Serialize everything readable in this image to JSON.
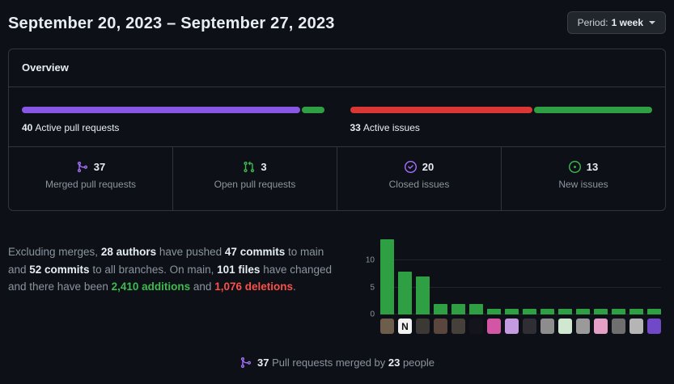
{
  "header": {
    "date_range": "September 20, 2023 – September 27, 2023",
    "period_label": "Period:",
    "period_value": "1 week"
  },
  "overview": {
    "title": "Overview",
    "pull_requests": {
      "count": "40",
      "label": "Active pull requests",
      "merged_pct": 92.5,
      "open_pct": 7.5,
      "merged_color": "#8957e5",
      "open_color": "#2ea043"
    },
    "issues": {
      "count": "33",
      "label": "Active issues",
      "closed_pct": 60.6,
      "new_pct": 39.4,
      "closed_color": "#da3633",
      "new_color": "#2ea043"
    },
    "stats": [
      {
        "count": "37",
        "label": "Merged pull requests",
        "icon": "git-merge-icon",
        "icon_color": "#a371f7"
      },
      {
        "count": "3",
        "label": "Open pull requests",
        "icon": "git-pull-request-icon",
        "icon_color": "#3fb950"
      },
      {
        "count": "20",
        "label": "Closed issues",
        "icon": "issue-closed-icon",
        "icon_color": "#a371f7"
      },
      {
        "count": "13",
        "label": "New issues",
        "icon": "issue-opened-icon",
        "icon_color": "#3fb950"
      }
    ]
  },
  "summary": {
    "segments": [
      {
        "text": "Excluding merges, ",
        "style": "muted"
      },
      {
        "text": "28 authors",
        "style": "bold"
      },
      {
        "text": " have pushed ",
        "style": "muted"
      },
      {
        "text": "47 commits",
        "style": "bold"
      },
      {
        "text": " to main and ",
        "style": "muted"
      },
      {
        "text": "52 commits",
        "style": "bold"
      },
      {
        "text": " to all branches. On main, ",
        "style": "muted"
      },
      {
        "text": "101 files",
        "style": "bold"
      },
      {
        "text": " have changed and there have been ",
        "style": "muted"
      },
      {
        "text": "2,410 additions",
        "style": "additions"
      },
      {
        "text": " and ",
        "style": "muted"
      },
      {
        "text": "1,076 deletions",
        "style": "deletions"
      },
      {
        "text": ".",
        "style": "muted"
      }
    ]
  },
  "chart_data": {
    "type": "bar",
    "values": [
      14,
      8,
      7,
      2,
      2,
      2,
      1,
      1,
      1,
      1,
      1,
      1,
      1,
      1,
      1,
      1
    ],
    "ylim": [
      0,
      15
    ],
    "yticks": [
      0,
      5,
      10
    ],
    "grid": true,
    "bar_color": "#2ea043",
    "avatars": [
      {
        "color": "#6d5d4b",
        "initial": ""
      },
      {
        "color": "#f2f2f2",
        "initial": "N",
        "text_color": "#111111"
      },
      {
        "color": "#3c3834",
        "initial": ""
      },
      {
        "color": "#5a463c",
        "initial": ""
      },
      {
        "color": "#46403a",
        "initial": ""
      },
      {
        "color": "#14141c",
        "initial": ""
      },
      {
        "color": "#d356a4",
        "initial": ""
      },
      {
        "color": "#c49be0",
        "initial": ""
      },
      {
        "color": "#2e2e34",
        "initial": ""
      },
      {
        "color": "#8d8d8d",
        "initial": ""
      },
      {
        "color": "#cfe8cf",
        "initial": ""
      },
      {
        "color": "#9a9a9a",
        "initial": ""
      },
      {
        "color": "#e39fc6",
        "initial": ""
      },
      {
        "color": "#6f6f6f",
        "initial": ""
      },
      {
        "color": "#b5b5b5",
        "initial": ""
      },
      {
        "color": "#7048c8",
        "initial": ""
      }
    ]
  },
  "footer": {
    "icon": "git-merge-icon",
    "icon_color": "#a371f7",
    "segments": [
      {
        "text": "37",
        "style": "bold"
      },
      {
        "text": " Pull requests merged by ",
        "style": "muted"
      },
      {
        "text": "23",
        "style": "bold"
      },
      {
        "text": " people",
        "style": "muted"
      }
    ]
  },
  "colors": {
    "background": "#0d1117",
    "border": "#30363d",
    "text": "#e6edf3",
    "muted": "#8b949e",
    "green": "#3fb950",
    "purple": "#a371f7",
    "red": "#f85149"
  }
}
